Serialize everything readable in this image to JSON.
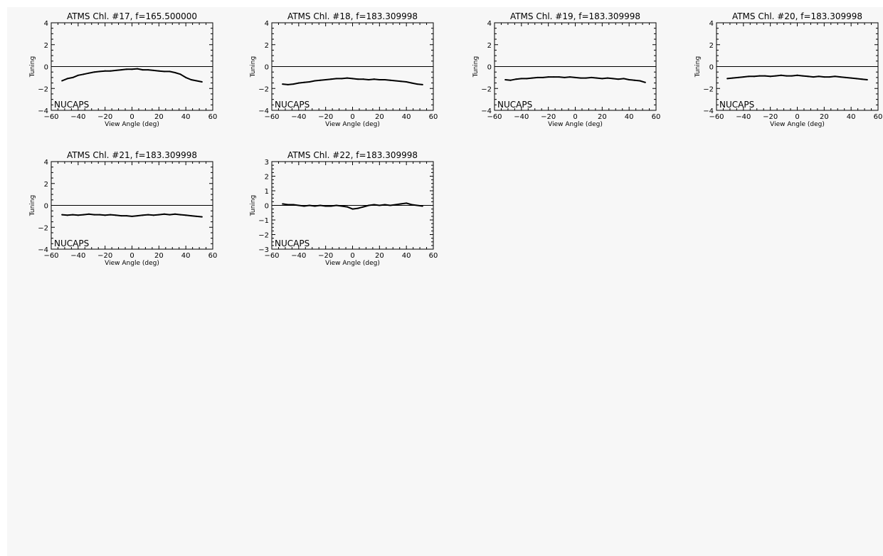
{
  "chart_data": [
    {
      "type": "line",
      "title": "ATMS Chl. #17, f=165.500000",
      "xlabel": "View Angle (deg)",
      "ylabel": "Tuning",
      "annotation": "NUCAPS",
      "xlim": [
        -60,
        60
      ],
      "ylim": [
        -4,
        4
      ],
      "xticks": [
        -60,
        -40,
        -20,
        0,
        20,
        40,
        60
      ],
      "yticks": [
        -4,
        -2,
        0,
        2,
        4
      ],
      "reference_line_y": 0,
      "x": [
        -52,
        -48,
        -44,
        -40,
        -36,
        -32,
        -28,
        -24,
        -20,
        -16,
        -12,
        -8,
        -4,
        0,
        4,
        8,
        12,
        16,
        20,
        24,
        28,
        32,
        36,
        40,
        44,
        48,
        52
      ],
      "y": [
        -1.3,
        -1.1,
        -1.0,
        -0.8,
        -0.7,
        -0.6,
        -0.5,
        -0.45,
        -0.4,
        -0.4,
        -0.35,
        -0.3,
        -0.25,
        -0.25,
        -0.2,
        -0.3,
        -0.3,
        -0.35,
        -0.4,
        -0.45,
        -0.45,
        -0.55,
        -0.7,
        -1.0,
        -1.2,
        -1.3,
        -1.4
      ]
    },
    {
      "type": "line",
      "title": "ATMS Chl. #18, f=183.309998",
      "xlabel": "View Angle (deg)",
      "ylabel": "Tuning",
      "annotation": "NUCAPS",
      "xlim": [
        -60,
        60
      ],
      "ylim": [
        -4,
        4
      ],
      "xticks": [
        -60,
        -40,
        -20,
        0,
        20,
        40,
        60
      ],
      "yticks": [
        -4,
        -2,
        0,
        2,
        4
      ],
      "reference_line_y": 0,
      "x": [
        -52,
        -48,
        -44,
        -40,
        -36,
        -32,
        -28,
        -24,
        -20,
        -16,
        -12,
        -8,
        -4,
        0,
        4,
        8,
        12,
        16,
        20,
        24,
        28,
        32,
        36,
        40,
        44,
        48,
        52
      ],
      "y": [
        -1.6,
        -1.65,
        -1.6,
        -1.5,
        -1.45,
        -1.4,
        -1.3,
        -1.25,
        -1.2,
        -1.15,
        -1.1,
        -1.1,
        -1.05,
        -1.1,
        -1.15,
        -1.15,
        -1.2,
        -1.15,
        -1.2,
        -1.2,
        -1.25,
        -1.3,
        -1.35,
        -1.4,
        -1.5,
        -1.6,
        -1.65
      ]
    },
    {
      "type": "line",
      "title": "ATMS Chl. #19, f=183.309998",
      "xlabel": "View Angle (deg)",
      "ylabel": "Tuning",
      "annotation": "NUCAPS",
      "xlim": [
        -60,
        60
      ],
      "ylim": [
        -4,
        4
      ],
      "xticks": [
        -60,
        -40,
        -20,
        0,
        20,
        40,
        60
      ],
      "yticks": [
        -4,
        -2,
        0,
        2,
        4
      ],
      "reference_line_y": 0,
      "x": [
        -52,
        -48,
        -44,
        -40,
        -36,
        -32,
        -28,
        -24,
        -20,
        -16,
        -12,
        -8,
        -4,
        0,
        4,
        8,
        12,
        16,
        20,
        24,
        28,
        32,
        36,
        40,
        44,
        48,
        52
      ],
      "y": [
        -1.2,
        -1.25,
        -1.15,
        -1.1,
        -1.1,
        -1.05,
        -1.0,
        -1.0,
        -0.95,
        -0.95,
        -0.95,
        -1.0,
        -0.95,
        -1.0,
        -1.05,
        -1.05,
        -1.0,
        -1.05,
        -1.1,
        -1.05,
        -1.1,
        -1.15,
        -1.1,
        -1.2,
        -1.25,
        -1.3,
        -1.45
      ]
    },
    {
      "type": "line",
      "title": "ATMS Chl. #20, f=183.309998",
      "xlabel": "View Angle (deg)",
      "ylabel": "Tuning",
      "annotation": "NUCAPS",
      "xlim": [
        -60,
        60
      ],
      "ylim": [
        -4,
        4
      ],
      "xticks": [
        -60,
        -40,
        -20,
        0,
        20,
        40,
        60
      ],
      "yticks": [
        -4,
        -2,
        0,
        2,
        4
      ],
      "reference_line_y": 0,
      "x": [
        -52,
        -48,
        -44,
        -40,
        -36,
        -32,
        -28,
        -24,
        -20,
        -16,
        -12,
        -8,
        -4,
        0,
        4,
        8,
        12,
        16,
        20,
        24,
        28,
        32,
        36,
        40,
        44,
        48,
        52
      ],
      "y": [
        -1.1,
        -1.05,
        -1.0,
        -0.95,
        -0.9,
        -0.9,
        -0.85,
        -0.85,
        -0.9,
        -0.85,
        -0.8,
        -0.85,
        -0.85,
        -0.8,
        -0.85,
        -0.9,
        -0.95,
        -0.9,
        -0.95,
        -0.95,
        -0.9,
        -0.95,
        -1.0,
        -1.05,
        -1.1,
        -1.15,
        -1.2
      ]
    },
    {
      "type": "line",
      "title": "ATMS Chl. #21, f=183.309998",
      "xlabel": "View Angle (deg)",
      "ylabel": "Tuning",
      "annotation": "NUCAPS",
      "xlim": [
        -60,
        60
      ],
      "ylim": [
        -4,
        4
      ],
      "xticks": [
        -60,
        -40,
        -20,
        0,
        20,
        40,
        60
      ],
      "yticks": [
        -4,
        -2,
        0,
        2,
        4
      ],
      "reference_line_y": 0,
      "x": [
        -52,
        -48,
        -44,
        -40,
        -36,
        -32,
        -28,
        -24,
        -20,
        -16,
        -12,
        -8,
        -4,
        0,
        4,
        8,
        12,
        16,
        20,
        24,
        28,
        32,
        36,
        40,
        44,
        48,
        52
      ],
      "y": [
        -0.85,
        -0.9,
        -0.85,
        -0.9,
        -0.85,
        -0.8,
        -0.85,
        -0.85,
        -0.9,
        -0.85,
        -0.9,
        -0.95,
        -0.95,
        -1.0,
        -0.95,
        -0.9,
        -0.85,
        -0.9,
        -0.85,
        -0.8,
        -0.85,
        -0.8,
        -0.85,
        -0.9,
        -0.95,
        -1.0,
        -1.05
      ]
    },
    {
      "type": "line",
      "title": "ATMS Chl. #22, f=183.309998",
      "xlabel": "View Angle (deg)",
      "ylabel": "Tuning",
      "annotation": "NUCAPS",
      "xlim": [
        -60,
        60
      ],
      "ylim": [
        -3,
        3
      ],
      "xticks": [
        -60,
        -40,
        -20,
        0,
        20,
        40,
        60
      ],
      "yticks": [
        -3,
        -2,
        -1,
        0,
        1,
        2,
        3
      ],
      "reference_line_y": 0,
      "x": [
        -52,
        -48,
        -44,
        -40,
        -36,
        -32,
        -28,
        -24,
        -20,
        -16,
        -12,
        -8,
        -4,
        0,
        4,
        8,
        12,
        16,
        20,
        24,
        28,
        32,
        36,
        40,
        44,
        48,
        52
      ],
      "y": [
        0.1,
        0.05,
        0.05,
        0.0,
        -0.05,
        0.0,
        -0.05,
        0.0,
        -0.05,
        -0.05,
        0.0,
        -0.05,
        -0.1,
        -0.25,
        -0.2,
        -0.1,
        0.0,
        0.05,
        0.0,
        0.05,
        0.0,
        0.05,
        0.1,
        0.15,
        0.05,
        0.0,
        -0.05
      ]
    }
  ]
}
